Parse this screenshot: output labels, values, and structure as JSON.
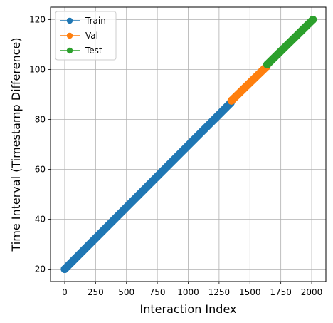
{
  "chart_data": {
    "type": "line",
    "title": "",
    "xlabel": "Interaction Index",
    "ylabel": "Time Interval (Timestamp Difference)",
    "xlim": [
      -115,
      2115
    ],
    "ylim": [
      15,
      125
    ],
    "xticks": [
      0,
      250,
      500,
      750,
      1000,
      1250,
      1500,
      1750,
      2000
    ],
    "yticks": [
      20,
      40,
      60,
      80,
      100,
      120
    ],
    "grid": true,
    "legend_position": "top-left",
    "marker": "circle",
    "series": [
      {
        "name": "Train",
        "color": "#1f77b4",
        "x_start": 0,
        "x_end": 1345,
        "y_start": 20,
        "y_end": 86.7
      },
      {
        "name": "Val",
        "color": "#ff7f0e",
        "x_start": 1350,
        "x_end": 1635,
        "y_start": 87.5,
        "y_end": 101.2
      },
      {
        "name": "Test",
        "color": "#2ca02c",
        "x_start": 1640,
        "x_end": 2010,
        "y_start": 102,
        "y_end": 120
      }
    ]
  }
}
